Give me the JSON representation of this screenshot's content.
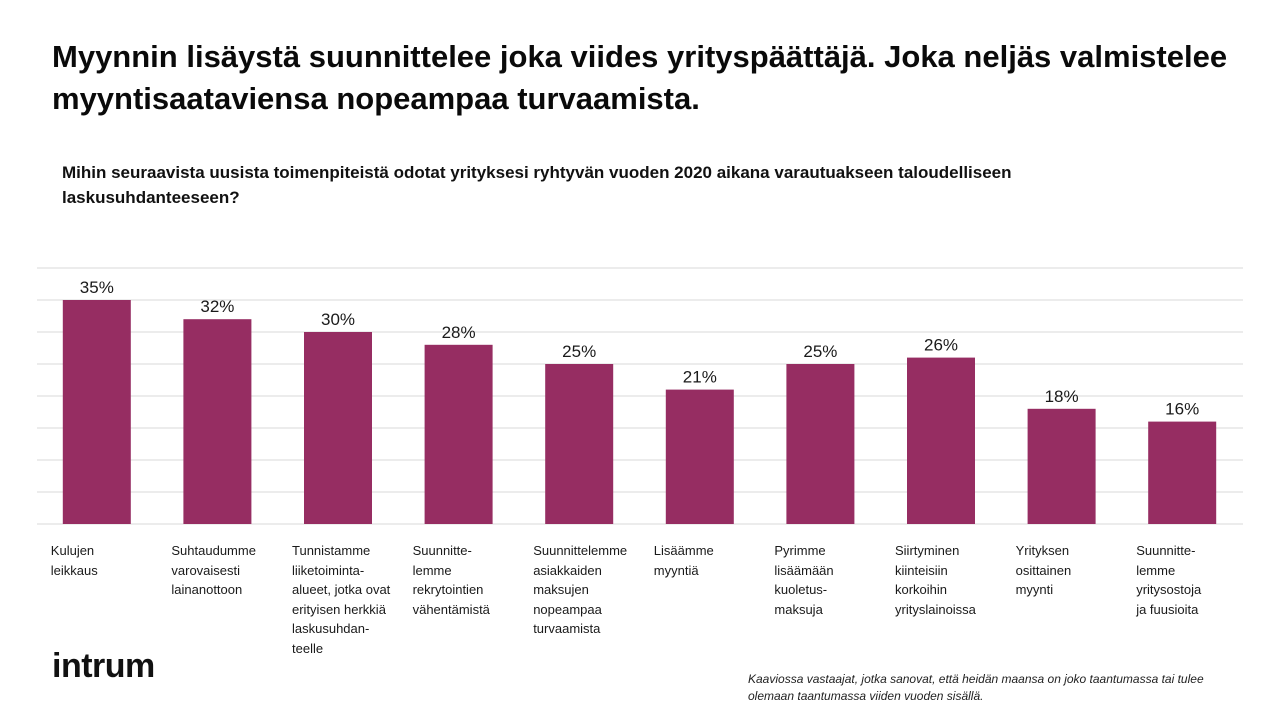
{
  "headline": "Myynnin lisäystä suunnittelee joka viides yrityspäättäjä. Joka neljäs valmistelee myyntisaataviensa nopeampaa turvaamista.",
  "question": "Mihin seuraavista uusista toimenpiteistä odotat yrityksesi ryhtyvän vuoden 2020 aikana varautuakseen taloudelliseen laskusuhdanteeseen?",
  "logo_text": "intrum",
  "footnote": "Kaaviossa vastaajat, jotka sanovat, että heidän maansa on joko taantumassa tai tulee olemaan taantumassa viiden vuoden sisällä.",
  "colors": {
    "bar": "#962d62",
    "grid": "#d9d9d9",
    "text": "#111111"
  },
  "chart_data": {
    "type": "bar",
    "categories": [
      "Kulujen\nleikkaus",
      "Suhtaudumme\nvarovaisesti\nlainanottoon",
      "Tunnistamme\nliiketoiminta-\nalueet, jotka ovat\nerityisen herkkiä\nlaskusuhdan-\nteelle",
      "Suunnitte-\nlemme\nrekrytointien\nvähentämistä",
      "Suunnittelemme\nasiakkaiden\nmaksujen\nnopeampaa\nturvaamista",
      "Lisäämme\nmyyntiä",
      "Pyrimme\nlisäämään\nkuoletus-\nmaksuja",
      "Siirtyminen\nkiinteisiin\nkorkoihin\nyrityslainoissa",
      " Yrityksen\nosittainen\nmyynti",
      "Suunnitte-\nlemme\nyritysostoja\nja fuusioita"
    ],
    "values": [
      35,
      32,
      30,
      28,
      25,
      21,
      25,
      26,
      18,
      16
    ],
    "data_labels": [
      "35%",
      "32%",
      "30%",
      "28%",
      "25%",
      "21%",
      "25%",
      "26%",
      "18%",
      "16%"
    ],
    "ylim": [
      0,
      40
    ],
    "grid": true,
    "legend": "none",
    "title": "",
    "xlabel": "",
    "ylabel": ""
  }
}
